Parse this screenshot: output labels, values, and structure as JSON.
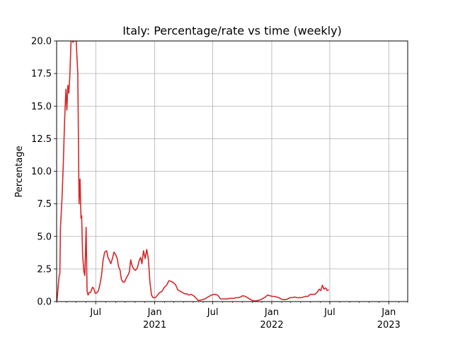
{
  "chart_data": {
    "type": "line",
    "title": "Italy: Percentage/rate vs time (weekly)",
    "xlabel": "",
    "ylabel": "Percentage",
    "ylim": [
      0,
      20
    ],
    "xlim": [
      "2020-03-01",
      "2023-03-01"
    ],
    "grid": true,
    "yticks": [
      {
        "value": 0,
        "label": "0.0"
      },
      {
        "value": 2.5,
        "label": "2.5"
      },
      {
        "value": 5,
        "label": "5.0"
      },
      {
        "value": 7.5,
        "label": "7.5"
      },
      {
        "value": 10,
        "label": "10.0"
      },
      {
        "value": 12.5,
        "label": "12.5"
      },
      {
        "value": 15,
        "label": "15.0"
      },
      {
        "value": 17.5,
        "label": "17.5"
      },
      {
        "value": 20,
        "label": "20.0"
      }
    ],
    "xticks": [
      {
        "date": "2020-07-01",
        "label": "Jul",
        "sub": ""
      },
      {
        "date": "2021-01-01",
        "label": "Jan",
        "sub": "2021"
      },
      {
        "date": "2021-07-01",
        "label": "Jul",
        "sub": ""
      },
      {
        "date": "2022-01-01",
        "label": "Jan",
        "sub": "2022"
      },
      {
        "date": "2022-07-01",
        "label": "Jul",
        "sub": ""
      },
      {
        "date": "2023-01-01",
        "label": "Jan",
        "sub": "2023"
      }
    ],
    "series": [
      {
        "name": "",
        "color": "#d62728",
        "points": [
          [
            "2020-03-02",
            0.05
          ],
          [
            "2020-03-09",
            2.0
          ],
          [
            "2020-03-11",
            2.1
          ],
          [
            "2020-03-13",
            5.7
          ],
          [
            "2020-03-18",
            8.0
          ],
          [
            "2020-03-22",
            10.7
          ],
          [
            "2020-03-26",
            14.0
          ],
          [
            "2020-03-30",
            16.3
          ],
          [
            "2020-04-02",
            14.7
          ],
          [
            "2020-04-05",
            16.6
          ],
          [
            "2020-04-08",
            16.0
          ],
          [
            "2020-04-11",
            17.2
          ],
          [
            "2020-04-15",
            20.0
          ],
          [
            "2020-04-20",
            20.0
          ],
          [
            "2020-04-21",
            19.9
          ],
          [
            "2020-04-23",
            20.0
          ],
          [
            "2020-05-01",
            20.0
          ],
          [
            "2020-05-06",
            17.5
          ],
          [
            "2020-05-10",
            7.5
          ],
          [
            "2020-05-13",
            9.4
          ],
          [
            "2020-05-16",
            6.4
          ],
          [
            "2020-05-18",
            6.6
          ],
          [
            "2020-05-21",
            3.6
          ],
          [
            "2020-05-25",
            2.3
          ],
          [
            "2020-05-28",
            2.0
          ],
          [
            "2020-06-01",
            5.7
          ],
          [
            "2020-06-04",
            0.8
          ],
          [
            "2020-06-07",
            0.5
          ],
          [
            "2020-06-11",
            0.7
          ],
          [
            "2020-06-15",
            0.7
          ],
          [
            "2020-06-21",
            1.1
          ],
          [
            "2020-06-25",
            1.0
          ],
          [
            "2020-06-29",
            0.65
          ],
          [
            "2020-07-03",
            0.65
          ],
          [
            "2020-07-09",
            0.8
          ],
          [
            "2020-07-14",
            1.3
          ],
          [
            "2020-07-19",
            2.0
          ],
          [
            "2020-07-24",
            3.2
          ],
          [
            "2020-07-29",
            3.8
          ],
          [
            "2020-08-04",
            3.9
          ],
          [
            "2020-08-08",
            3.4
          ],
          [
            "2020-08-12",
            3.2
          ],
          [
            "2020-08-17",
            2.9
          ],
          [
            "2020-08-22",
            3.3
          ],
          [
            "2020-08-27",
            3.8
          ],
          [
            "2020-09-01",
            3.6
          ],
          [
            "2020-09-06",
            3.3
          ],
          [
            "2020-09-10",
            2.7
          ],
          [
            "2020-09-15",
            2.4
          ],
          [
            "2020-09-19",
            1.7
          ],
          [
            "2020-09-24",
            1.5
          ],
          [
            "2020-09-29",
            1.5
          ],
          [
            "2020-10-04",
            1.8
          ],
          [
            "2020-10-09",
            2.0
          ],
          [
            "2020-10-14",
            2.3
          ],
          [
            "2020-10-18",
            3.2
          ],
          [
            "2020-10-23",
            2.7
          ],
          [
            "2020-10-28",
            2.5
          ],
          [
            "2020-11-02",
            2.4
          ],
          [
            "2020-11-08",
            2.6
          ],
          [
            "2020-11-13",
            3.1
          ],
          [
            "2020-11-18",
            3.4
          ],
          [
            "2020-11-22",
            2.9
          ],
          [
            "2020-11-27",
            3.9
          ],
          [
            "2020-12-02",
            3.3
          ],
          [
            "2020-12-07",
            4.0
          ],
          [
            "2020-12-12",
            3.3
          ],
          [
            "2020-12-17",
            1.5
          ],
          [
            "2020-12-22",
            0.5
          ],
          [
            "2020-12-27",
            0.3
          ],
          [
            "2021-01-03",
            0.3
          ],
          [
            "2021-01-10",
            0.5
          ],
          [
            "2021-01-17",
            0.7
          ],
          [
            "2021-01-24",
            0.8
          ],
          [
            "2021-01-31",
            1.1
          ],
          [
            "2021-02-07",
            1.25
          ],
          [
            "2021-02-14",
            1.6
          ],
          [
            "2021-02-21",
            1.55
          ],
          [
            "2021-02-28",
            1.45
          ],
          [
            "2021-03-07",
            1.3
          ],
          [
            "2021-03-14",
            0.9
          ],
          [
            "2021-03-21",
            0.8
          ],
          [
            "2021-03-28",
            0.7
          ],
          [
            "2021-04-04",
            0.6
          ],
          [
            "2021-04-11",
            0.6
          ],
          [
            "2021-04-18",
            0.5
          ],
          [
            "2021-04-25",
            0.55
          ],
          [
            "2021-05-02",
            0.45
          ],
          [
            "2021-05-09",
            0.3
          ],
          [
            "2021-05-16",
            0.1
          ],
          [
            "2021-05-23",
            0.1
          ],
          [
            "2021-05-30",
            0.15
          ],
          [
            "2021-06-06",
            0.2
          ],
          [
            "2021-06-13",
            0.3
          ],
          [
            "2021-06-20",
            0.4
          ],
          [
            "2021-06-27",
            0.5
          ],
          [
            "2021-07-04",
            0.55
          ],
          [
            "2021-07-11",
            0.55
          ],
          [
            "2021-07-18",
            0.45
          ],
          [
            "2021-07-25",
            0.2
          ],
          [
            "2021-08-01",
            0.2
          ],
          [
            "2021-08-08",
            0.2
          ],
          [
            "2021-08-15",
            0.2
          ],
          [
            "2021-08-22",
            0.25
          ],
          [
            "2021-08-29",
            0.25
          ],
          [
            "2021-09-05",
            0.25
          ],
          [
            "2021-09-12",
            0.3
          ],
          [
            "2021-09-19",
            0.3
          ],
          [
            "2021-09-26",
            0.35
          ],
          [
            "2021-10-03",
            0.45
          ],
          [
            "2021-10-10",
            0.4
          ],
          [
            "2021-10-17",
            0.3
          ],
          [
            "2021-10-24",
            0.2
          ],
          [
            "2021-10-31",
            0.1
          ],
          [
            "2021-11-07",
            0.05
          ],
          [
            "2021-11-14",
            0.05
          ],
          [
            "2021-11-21",
            0.1
          ],
          [
            "2021-11-28",
            0.15
          ],
          [
            "2021-12-05",
            0.25
          ],
          [
            "2021-12-12",
            0.35
          ],
          [
            "2021-12-19",
            0.5
          ],
          [
            "2021-12-26",
            0.45
          ],
          [
            "2022-01-02",
            0.4
          ],
          [
            "2022-01-09",
            0.4
          ],
          [
            "2022-01-16",
            0.35
          ],
          [
            "2022-01-23",
            0.3
          ],
          [
            "2022-01-30",
            0.2
          ],
          [
            "2022-02-06",
            0.15
          ],
          [
            "2022-02-13",
            0.15
          ],
          [
            "2022-02-20",
            0.2
          ],
          [
            "2022-02-27",
            0.3
          ],
          [
            "2022-03-06",
            0.3
          ],
          [
            "2022-03-13",
            0.35
          ],
          [
            "2022-03-20",
            0.3
          ],
          [
            "2022-03-27",
            0.3
          ],
          [
            "2022-04-03",
            0.3
          ],
          [
            "2022-04-10",
            0.35
          ],
          [
            "2022-04-17",
            0.4
          ],
          [
            "2022-04-24",
            0.4
          ],
          [
            "2022-05-01",
            0.55
          ],
          [
            "2022-05-08",
            0.55
          ],
          [
            "2022-05-15",
            0.55
          ],
          [
            "2022-05-22",
            0.7
          ],
          [
            "2022-05-29",
            0.95
          ],
          [
            "2022-06-03",
            0.85
          ],
          [
            "2022-06-08",
            1.25
          ],
          [
            "2022-06-13",
            0.95
          ],
          [
            "2022-06-18",
            1.05
          ],
          [
            "2022-06-23",
            0.85
          ],
          [
            "2022-06-28",
            0.9
          ]
        ]
      }
    ]
  }
}
